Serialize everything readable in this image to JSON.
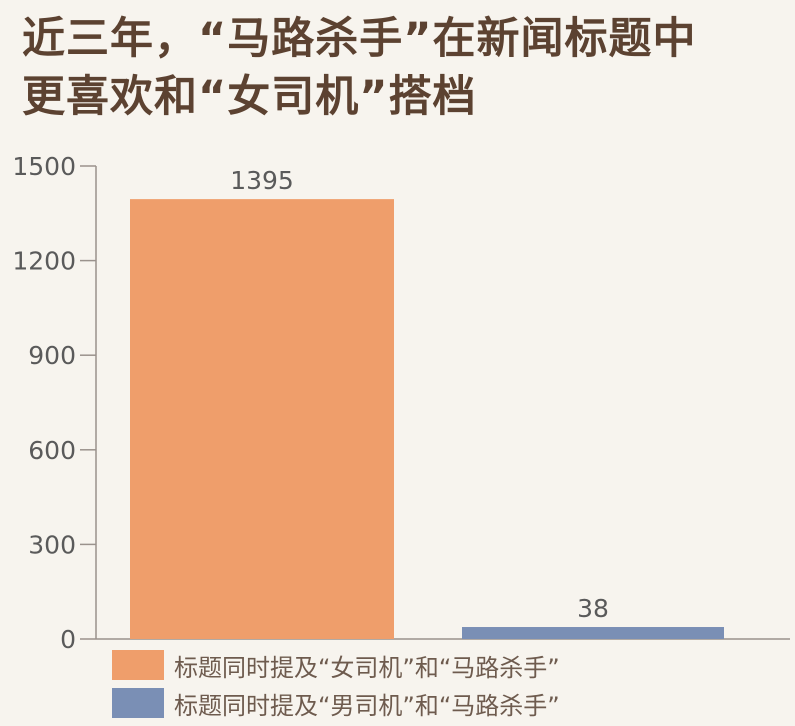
{
  "title_lines": [
    "近三年，“马路杀手”在新闻标题中",
    "更喜欢和“女司机”搭档"
  ],
  "colors": {
    "background": "#f7f4ee",
    "title": "#5c4231",
    "axis": "#9a928c",
    "tick_text": "#5a5a5a",
    "female": "#ef9e6b",
    "male": "#7a8fb5"
  },
  "chart_data": {
    "type": "bar",
    "title": "近三年，“马路杀手”在新闻标题中更喜欢和“女司机”搭档",
    "categories": [
      "标题同时提及“女司机”和“马路杀手”",
      "标题同时提及“男司机”和“马路杀手”"
    ],
    "values": [
      1395,
      38
    ],
    "data_labels": [
      "1395",
      "38"
    ],
    "bar_colors": [
      "#ef9e6b",
      "#7a8fb5"
    ],
    "ylim": [
      0,
      1500
    ],
    "yticks": [
      0,
      300,
      600,
      900,
      1200,
      1500
    ],
    "ytick_labels": [
      "0",
      "300",
      "600",
      "900",
      "1200",
      "1500"
    ],
    "xlabel": "",
    "ylabel": "",
    "grid": false,
    "legend_position": "bottom"
  },
  "legend": [
    {
      "label": "标题同时提及“女司机”和“马路杀手”",
      "color": "#ef9e6b"
    },
    {
      "label": "标题同时提及“男司机”和“马路杀手”",
      "color": "#7a8fb5"
    }
  ]
}
